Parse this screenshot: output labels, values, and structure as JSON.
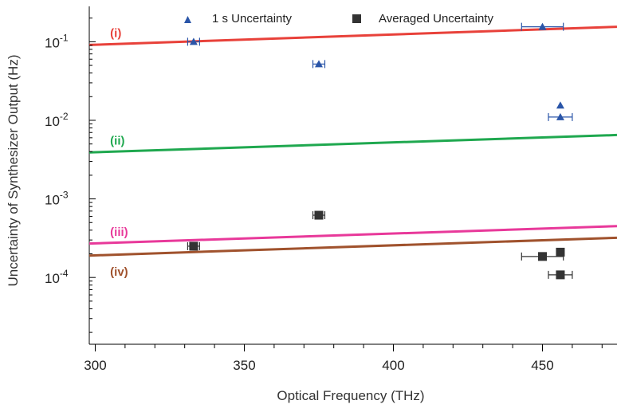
{
  "chart_data": {
    "type": "scatter",
    "xlabel": "Optical Frequency (THz)",
    "ylabel": "Uncertainty of Synthesizer Output (Hz)",
    "xlim": [
      298,
      475
    ],
    "ylim_log10": [
      -4.85,
      -0.55
    ],
    "y_scale": "log",
    "x_ticks": [
      "300",
      "350",
      "400",
      "450"
    ],
    "x_tick_values": [
      300,
      350,
      400,
      450
    ],
    "y_ticks": [
      {
        "base": "10",
        "exp": "-1",
        "value": 0.1
      },
      {
        "base": "10",
        "exp": "-2",
        "value": 0.01
      },
      {
        "base": "10",
        "exp": "-3",
        "value": 0.001
      },
      {
        "base": "10",
        "exp": "-4",
        "value": 0.0001
      }
    ],
    "grid": false,
    "legend_position": "top",
    "series": [
      {
        "name": "1 s Uncertainty",
        "marker": "triangle",
        "color": "#2a55a8",
        "points": [
          {
            "x": 333,
            "y": 0.1,
            "xerr": 2
          },
          {
            "x": 375,
            "y": 0.052,
            "xerr": 2
          },
          {
            "x": 450,
            "y": 0.155,
            "xerr": 7
          },
          {
            "x": 456,
            "y": 0.0155,
            "xerr": 0
          },
          {
            "x": 456,
            "y": 0.011,
            "xerr": 4
          }
        ]
      },
      {
        "name": "Averaged Uncertainty",
        "marker": "square",
        "color": "#333333",
        "points": [
          {
            "x": 333,
            "y": 0.00025,
            "xerr": 2
          },
          {
            "x": 375,
            "y": 0.00062,
            "xerr": 2
          },
          {
            "x": 450,
            "y": 0.000185,
            "xerr": 7
          },
          {
            "x": 456,
            "y": 0.00021,
            "xerr": 0
          },
          {
            "x": 456,
            "y": 0.000108,
            "xerr": 4
          }
        ]
      }
    ],
    "reference_lines": [
      {
        "label": "(i)",
        "color": "#e8413a",
        "x": [
          298,
          475
        ],
        "y": [
          0.091,
          0.155
        ],
        "label_x": 305
      },
      {
        "label": "(ii)",
        "color": "#1fa84f",
        "x": [
          298,
          475
        ],
        "y": [
          0.0039,
          0.0065
        ],
        "label_x": 305
      },
      {
        "label": "(iii)",
        "color": "#e8399a",
        "x": [
          298,
          475
        ],
        "y": [
          0.00027,
          0.00045
        ],
        "label_x": 305
      },
      {
        "label": "(iv)",
        "color": "#a0522d",
        "x": [
          298,
          475
        ],
        "y": [
          0.00019,
          0.00032
        ],
        "label_x": 305
      }
    ]
  }
}
